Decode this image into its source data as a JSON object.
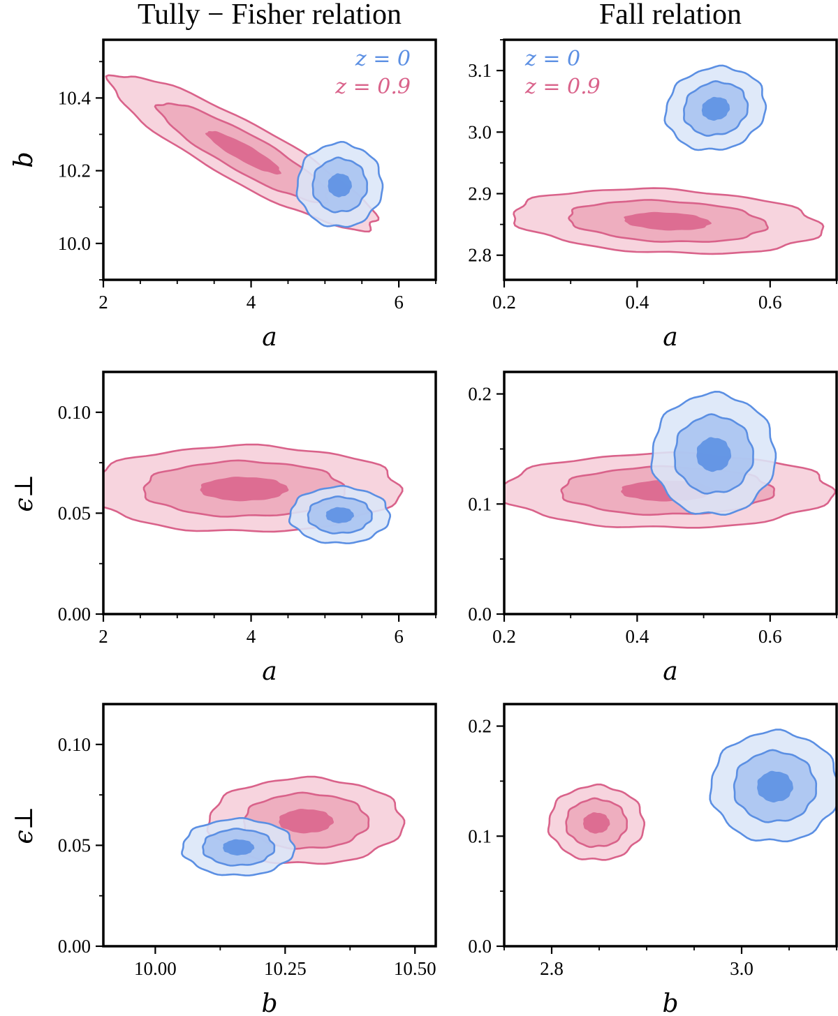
{
  "colors": {
    "z0": "#5b8fe3",
    "z09": "#d9628a",
    "z0_fill": [
      "#dbe6f8",
      "#a9c3f0",
      "#5b8fe3"
    ],
    "z09_fill": [
      "#f7d4de",
      "#eeaebf",
      "#dd6d92"
    ]
  },
  "columns": [
    {
      "title": "Tully − Fisher relation"
    },
    {
      "title": "Fall relation"
    }
  ],
  "legend": {
    "z0": "z = 0",
    "z09": "z = 0.9"
  },
  "chart_data": [
    {
      "type": "contour",
      "id": "tf_a_b",
      "title": "Tully − Fisher relation",
      "xlabel": "a",
      "ylabel": "b",
      "xlim": [
        2,
        6.5
      ],
      "ylim": [
        9.9,
        10.56
      ],
      "xticks": [
        2,
        4,
        6
      ],
      "xtick_labels": [
        "2",
        "4",
        "6"
      ],
      "yticks": [
        10.0,
        10.2,
        10.4
      ],
      "ytick_labels": [
        "10.0",
        "10.2",
        "10.4"
      ],
      "x_minor": 0.5,
      "y_minor": 0.1,
      "legend": true,
      "series": [
        {
          "name": "z = 0.9",
          "color_key": "z09",
          "center": [
            3.9,
            10.25
          ],
          "sigma": [
            0.72,
            0.085
          ],
          "rho": -0.9
        },
        {
          "name": "z = 0",
          "color_key": "z0",
          "center": [
            5.2,
            10.16
          ],
          "sigma": [
            0.23,
            0.046
          ],
          "rho": 0
        }
      ]
    },
    {
      "type": "contour",
      "id": "fall_a_b",
      "title": "Fall relation",
      "xlabel": "a",
      "ylabel": "b",
      "xlim": [
        0.2,
        0.7
      ],
      "ylim": [
        2.76,
        3.15
      ],
      "xticks": [
        0.2,
        0.4,
        0.6
      ],
      "xtick_labels": [
        "0.2",
        "0.4",
        "0.6"
      ],
      "yticks": [
        2.8,
        2.9,
        3.0,
        3.1
      ],
      "ytick_labels": [
        "2.8",
        "2.9",
        "3.0",
        "3.1"
      ],
      "x_minor": 0.1,
      "y_minor": 0.05,
      "legend": true,
      "series": [
        {
          "name": "z = 0.9",
          "color_key": "z09",
          "center": [
            0.445,
            2.855
          ],
          "sigma": [
            0.093,
            0.021
          ],
          "rho": -0.2
        },
        {
          "name": "z = 0",
          "color_key": "z0",
          "center": [
            0.518,
            3.038
          ],
          "sigma": [
            0.03,
            0.027
          ],
          "rho": 0.1
        }
      ]
    },
    {
      "type": "contour",
      "id": "tf_a_eps",
      "title": "",
      "xlabel": "a",
      "ylabel": "ϵ⊥",
      "xlim": [
        2,
        6.5
      ],
      "ylim": [
        0.0,
        0.12
      ],
      "xticks": [
        2,
        4,
        6
      ],
      "xtick_labels": [
        "2",
        "4",
        "6"
      ],
      "yticks": [
        0.0,
        0.05,
        0.1
      ],
      "ytick_labels": [
        "0.00",
        "0.05",
        "0.10"
      ],
      "x_minor": 0.5,
      "y_minor": 0.025,
      "legend": false,
      "series": [
        {
          "name": "z = 0.9",
          "color_key": "z09",
          "center": [
            3.9,
            0.062
          ],
          "sigma": [
            0.85,
            0.0085
          ],
          "rho": 0
        },
        {
          "name": "z = 0",
          "color_key": "z0",
          "center": [
            5.2,
            0.049
          ],
          "sigma": [
            0.27,
            0.0056
          ],
          "rho": 0
        }
      ]
    },
    {
      "type": "contour",
      "id": "fall_a_eps",
      "title": "",
      "xlabel": "a",
      "ylabel": "",
      "xlim": [
        0.2,
        0.7
      ],
      "ylim": [
        0.0,
        0.22
      ],
      "xticks": [
        0.2,
        0.4,
        0.6
      ],
      "xtick_labels": [
        "0.2",
        "0.4",
        "0.6"
      ],
      "yticks": [
        0.0,
        0.1,
        0.2
      ],
      "ytick_labels": [
        "0.0",
        "0.1",
        "0.2"
      ],
      "x_minor": 0.1,
      "y_minor": 0.05,
      "legend": false,
      "series": [
        {
          "name": "z = 0.9",
          "color_key": "z09",
          "center": [
            0.445,
            0.112
          ],
          "sigma": [
            0.1,
            0.0135
          ],
          "rho": 0
        },
        {
          "name": "z = 0",
          "color_key": "z0",
          "center": [
            0.515,
            0.145
          ],
          "sigma": [
            0.037,
            0.022
          ],
          "rho": 0
        }
      ]
    },
    {
      "type": "contour",
      "id": "tf_b_eps",
      "title": "",
      "xlabel": "b",
      "ylabel": "ϵ⊥",
      "xlim": [
        9.9,
        10.54
      ],
      "ylim": [
        0.0,
        0.12
      ],
      "xticks": [
        10.0,
        10.25,
        10.5
      ],
      "xtick_labels": [
        "10.00",
        "10.25",
        "10.50"
      ],
      "x_minor": 0.125,
      "y_minor": 0.025,
      "yticks": [
        0.0,
        0.05,
        0.1
      ],
      "ytick_labels": [
        "0.00",
        "0.05",
        "0.10"
      ],
      "legend": false,
      "series": [
        {
          "name": "z = 0.9",
          "color_key": "z09",
          "center": [
            10.29,
            0.062
          ],
          "sigma": [
            0.075,
            0.0085
          ],
          "rho": 0
        },
        {
          "name": "z = 0",
          "color_key": "z0",
          "center": [
            10.16,
            0.049
          ],
          "sigma": [
            0.043,
            0.0056
          ],
          "rho": 0
        }
      ]
    },
    {
      "type": "contour",
      "id": "fall_b_eps",
      "title": "",
      "xlabel": "b",
      "ylabel": "",
      "xlim": [
        2.75,
        3.1
      ],
      "ylim": [
        0.0,
        0.22
      ],
      "xticks": [
        2.8,
        3.0
      ],
      "xtick_labels": [
        "2.8",
        "3.0"
      ],
      "yticks": [
        0.0,
        0.1,
        0.2
      ],
      "ytick_labels": [
        "0.0",
        "0.1",
        "0.2"
      ],
      "x_minor": 0.05,
      "y_minor": 0.05,
      "legend": false,
      "series": [
        {
          "name": "z = 0.9",
          "color_key": "z09",
          "center": [
            2.847,
            0.112
          ],
          "sigma": [
            0.02,
            0.0135
          ],
          "rho": 0
        },
        {
          "name": "z = 0",
          "color_key": "z0",
          "center": [
            3.035,
            0.145
          ],
          "sigma": [
            0.027,
            0.02
          ],
          "rho": 0
        }
      ]
    }
  ]
}
